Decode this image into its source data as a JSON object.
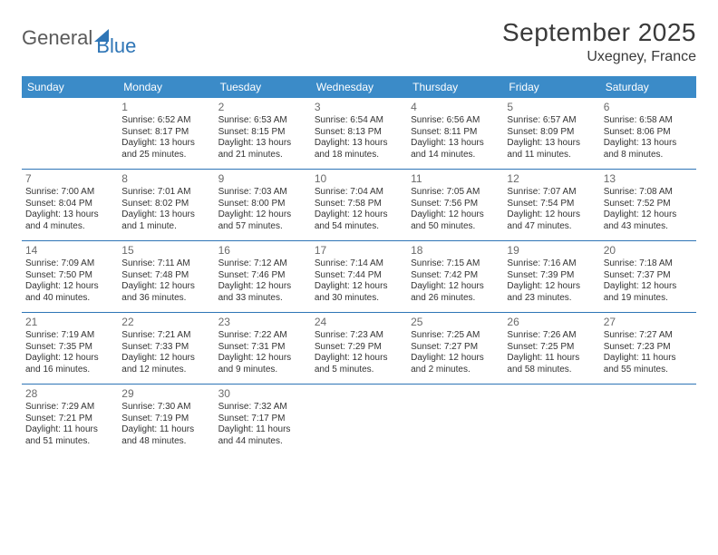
{
  "logo": {
    "word1": "General",
    "word2": "Blue"
  },
  "title": "September 2025",
  "location": "Uxegney, France",
  "day_header_bg": "#3b8bc8",
  "rule_color": "#2e75b6",
  "weekdays": [
    "Sunday",
    "Monday",
    "Tuesday",
    "Wednesday",
    "Thursday",
    "Friday",
    "Saturday"
  ],
  "weeks": [
    [
      null,
      {
        "n": "1",
        "sr": "6:52 AM",
        "ss": "8:17 PM",
        "dl": "13 hours and 25 minutes."
      },
      {
        "n": "2",
        "sr": "6:53 AM",
        "ss": "8:15 PM",
        "dl": "13 hours and 21 minutes."
      },
      {
        "n": "3",
        "sr": "6:54 AM",
        "ss": "8:13 PM",
        "dl": "13 hours and 18 minutes."
      },
      {
        "n": "4",
        "sr": "6:56 AM",
        "ss": "8:11 PM",
        "dl": "13 hours and 14 minutes."
      },
      {
        "n": "5",
        "sr": "6:57 AM",
        "ss": "8:09 PM",
        "dl": "13 hours and 11 minutes."
      },
      {
        "n": "6",
        "sr": "6:58 AM",
        "ss": "8:06 PM",
        "dl": "13 hours and 8 minutes."
      }
    ],
    [
      {
        "n": "7",
        "sr": "7:00 AM",
        "ss": "8:04 PM",
        "dl": "13 hours and 4 minutes."
      },
      {
        "n": "8",
        "sr": "7:01 AM",
        "ss": "8:02 PM",
        "dl": "13 hours and 1 minute."
      },
      {
        "n": "9",
        "sr": "7:03 AM",
        "ss": "8:00 PM",
        "dl": "12 hours and 57 minutes."
      },
      {
        "n": "10",
        "sr": "7:04 AM",
        "ss": "7:58 PM",
        "dl": "12 hours and 54 minutes."
      },
      {
        "n": "11",
        "sr": "7:05 AM",
        "ss": "7:56 PM",
        "dl": "12 hours and 50 minutes."
      },
      {
        "n": "12",
        "sr": "7:07 AM",
        "ss": "7:54 PM",
        "dl": "12 hours and 47 minutes."
      },
      {
        "n": "13",
        "sr": "7:08 AM",
        "ss": "7:52 PM",
        "dl": "12 hours and 43 minutes."
      }
    ],
    [
      {
        "n": "14",
        "sr": "7:09 AM",
        "ss": "7:50 PM",
        "dl": "12 hours and 40 minutes."
      },
      {
        "n": "15",
        "sr": "7:11 AM",
        "ss": "7:48 PM",
        "dl": "12 hours and 36 minutes."
      },
      {
        "n": "16",
        "sr": "7:12 AM",
        "ss": "7:46 PM",
        "dl": "12 hours and 33 minutes."
      },
      {
        "n": "17",
        "sr": "7:14 AM",
        "ss": "7:44 PM",
        "dl": "12 hours and 30 minutes."
      },
      {
        "n": "18",
        "sr": "7:15 AM",
        "ss": "7:42 PM",
        "dl": "12 hours and 26 minutes."
      },
      {
        "n": "19",
        "sr": "7:16 AM",
        "ss": "7:39 PM",
        "dl": "12 hours and 23 minutes."
      },
      {
        "n": "20",
        "sr": "7:18 AM",
        "ss": "7:37 PM",
        "dl": "12 hours and 19 minutes."
      }
    ],
    [
      {
        "n": "21",
        "sr": "7:19 AM",
        "ss": "7:35 PM",
        "dl": "12 hours and 16 minutes."
      },
      {
        "n": "22",
        "sr": "7:21 AM",
        "ss": "7:33 PM",
        "dl": "12 hours and 12 minutes."
      },
      {
        "n": "23",
        "sr": "7:22 AM",
        "ss": "7:31 PM",
        "dl": "12 hours and 9 minutes."
      },
      {
        "n": "24",
        "sr": "7:23 AM",
        "ss": "7:29 PM",
        "dl": "12 hours and 5 minutes."
      },
      {
        "n": "25",
        "sr": "7:25 AM",
        "ss": "7:27 PM",
        "dl": "12 hours and 2 minutes."
      },
      {
        "n": "26",
        "sr": "7:26 AM",
        "ss": "7:25 PM",
        "dl": "11 hours and 58 minutes."
      },
      {
        "n": "27",
        "sr": "7:27 AM",
        "ss": "7:23 PM",
        "dl": "11 hours and 55 minutes."
      }
    ],
    [
      {
        "n": "28",
        "sr": "7:29 AM",
        "ss": "7:21 PM",
        "dl": "11 hours and 51 minutes."
      },
      {
        "n": "29",
        "sr": "7:30 AM",
        "ss": "7:19 PM",
        "dl": "11 hours and 48 minutes."
      },
      {
        "n": "30",
        "sr": "7:32 AM",
        "ss": "7:17 PM",
        "dl": "11 hours and 44 minutes."
      },
      null,
      null,
      null,
      null
    ]
  ],
  "labels": {
    "sunrise": "Sunrise:",
    "sunset": "Sunset:",
    "daylight": "Daylight:"
  }
}
